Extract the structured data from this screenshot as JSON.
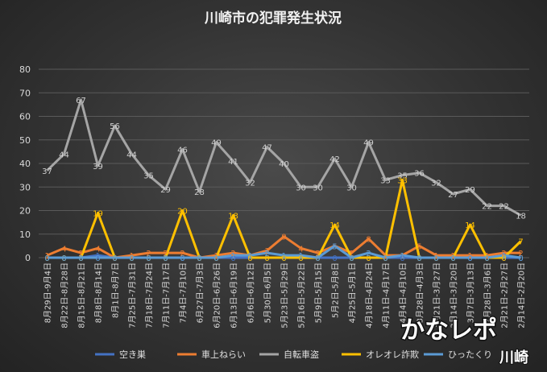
{
  "chart_data": {
    "type": "line",
    "title": "川崎市の犯罪発生状況",
    "ylim": [
      0,
      80
    ],
    "yticks": [
      0,
      10,
      20,
      30,
      40,
      50,
      60,
      70,
      80
    ],
    "grid": true,
    "legend_position": "bottom",
    "categories": [
      "8月29日-9月4日",
      "8月22日-8月28日",
      "8月15日-8月21日",
      "8月8日-8月14日",
      "8月1日-8月7日",
      "7月25日-7月31日",
      "7月18日-7月24日",
      "7月11日-7月17日",
      "7月4日-7月10日",
      "6月27日-7月3日",
      "6月20日-6月26日",
      "6月13日-6月19日",
      "6月6日-6月12日",
      "5月30日-6月5日",
      "5月23日-5月29日",
      "5月16日-5月22日",
      "5月9日-5月15日",
      "5月2日-5月8日",
      "4月25日-5月1日",
      "4月18日-4月24日",
      "4月11日-4月17日",
      "4月4日-4月10日",
      "3月28日-4月3日",
      "3月21日-3月27日",
      "3月14日-3月20日",
      "3月7日-3月13日",
      "2月28日-3月6日",
      "2月21日-2月27日",
      "2月14日-2月20日"
    ],
    "series": [
      {
        "name": "空き巣",
        "color": "#4472c4",
        "values": [
          0,
          0,
          0,
          1,
          0,
          0,
          0,
          0,
          0,
          0,
          0,
          0,
          0,
          0,
          0,
          0,
          0,
          0,
          0,
          0,
          0,
          0,
          0,
          0,
          0,
          0,
          0,
          0,
          0
        ]
      },
      {
        "name": "車上ねらい",
        "color": "#ed7d31",
        "values": [
          1,
          4,
          2,
          4,
          0,
          1,
          2,
          2,
          2,
          0,
          1,
          2,
          1,
          3,
          9,
          4,
          2,
          5,
          2,
          8,
          1,
          1,
          5,
          1,
          1,
          1,
          1,
          2,
          2
        ]
      },
      {
        "name": "自転車盗",
        "color": "#a5a5a5",
        "values": [
          37,
          44,
          67,
          39,
          56,
          44,
          35,
          29,
          46,
          28,
          49,
          41,
          32,
          47,
          40,
          30,
          30,
          42,
          30,
          49,
          33,
          35,
          36,
          32,
          27,
          29,
          22,
          22,
          18
        ]
      },
      {
        "name": "オレオレ詐欺",
        "color": "#ffc000",
        "values": [
          0,
          0,
          0,
          19,
          0,
          0,
          0,
          0,
          20,
          0,
          0,
          18,
          0,
          0,
          0,
          0,
          0,
          14,
          0,
          0,
          0,
          33,
          0,
          0,
          0,
          14,
          0,
          0,
          7
        ]
      },
      {
        "name": "ひったくり",
        "color": "#5b9bd5",
        "values": [
          0,
          0,
          0,
          0,
          0,
          0,
          0,
          0,
          0,
          0,
          0,
          1,
          1,
          2,
          1,
          1,
          0,
          5,
          0,
          2,
          0,
          1,
          0,
          0,
          0,
          0,
          0,
          1,
          0
        ]
      }
    ]
  },
  "watermark": {
    "main": "かなレポ",
    "sub": "川崎"
  }
}
